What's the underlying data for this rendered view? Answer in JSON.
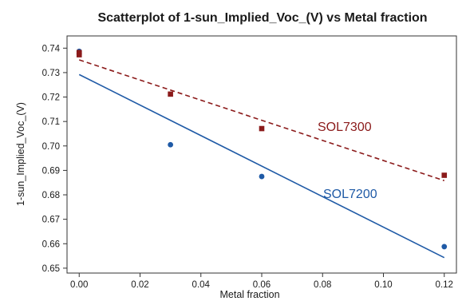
{
  "chart_data": {
    "type": "scatter",
    "title": "Scatterplot of 1-sun_Implied_Voc_(V) vs Metal fraction",
    "xlabel": "Metal fraction",
    "ylabel": "1-sun_Implied_Voc_(V)",
    "xlim": [
      -0.004,
      0.124
    ],
    "ylim": [
      0.648,
      0.745
    ],
    "xticks": [
      "0.00",
      "0.02",
      "0.04",
      "0.06",
      "0.08",
      "0.10",
      "0.12"
    ],
    "yticks": [
      "0.65",
      "0.66",
      "0.67",
      "0.68",
      "0.69",
      "0.70",
      "0.71",
      "0.72",
      "0.73",
      "0.74"
    ],
    "grid": false,
    "series": [
      {
        "name": "SOL7200",
        "color": "#1f5aa6",
        "marker": "circle",
        "line_style": "solid",
        "x": [
          0.0,
          0.0,
          0.03,
          0.06,
          0.12
        ],
        "y": [
          0.7387,
          0.7378,
          0.7005,
          0.6875,
          0.6588
        ],
        "fit_line": {
          "x": [
            0.0,
            0.12
          ],
          "y": [
            0.7292,
            0.6543
          ]
        }
      },
      {
        "name": "SOL7300",
        "color": "#8b1a1a",
        "marker": "square",
        "line_style": "dashed",
        "x": [
          0.0,
          0.0,
          0.03,
          0.06,
          0.12
        ],
        "y": [
          0.7382,
          0.7373,
          0.7212,
          0.7071,
          0.688
        ],
        "fit_line": {
          "x": [
            0.0,
            0.12
          ],
          "y": [
            0.7352,
            0.6858
          ]
        }
      }
    ]
  }
}
